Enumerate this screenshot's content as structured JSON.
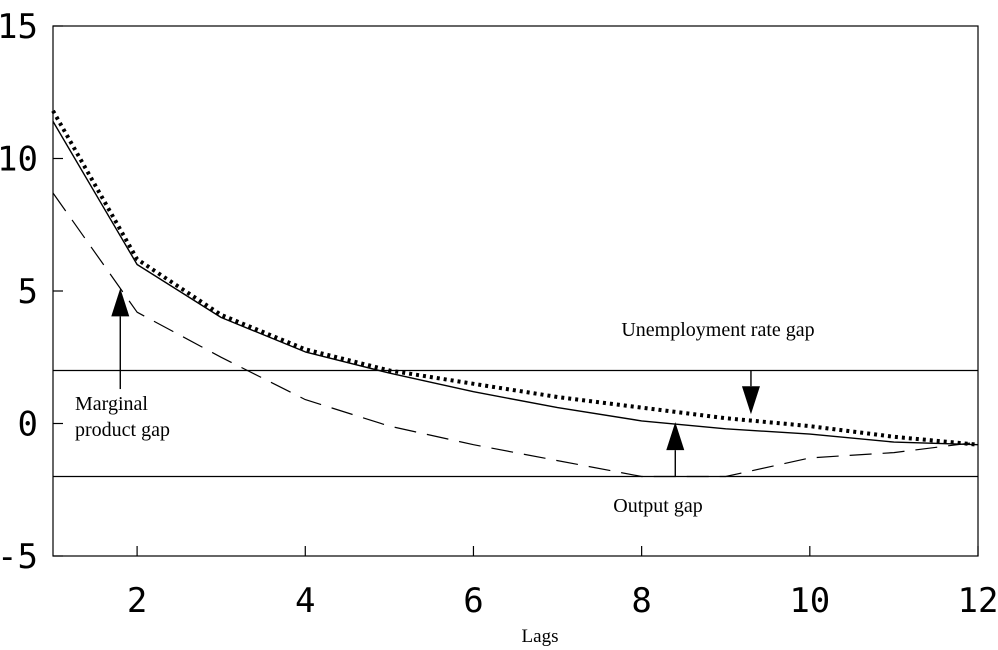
{
  "chart_data": {
    "type": "line",
    "xlabel": "Lags",
    "ylabel": "",
    "xlim": [
      1,
      12
    ],
    "ylim": [
      -5,
      15
    ],
    "x_ticks": [
      2,
      4,
      6,
      8,
      10,
      12
    ],
    "y_ticks": [
      -5,
      0,
      5,
      10,
      15
    ],
    "grid": false,
    "x": [
      1,
      2,
      3,
      4,
      5,
      6,
      7,
      8,
      9,
      10,
      11,
      12
    ],
    "series": [
      {
        "name": "Marginal product gap",
        "style": "solid",
        "color": "#000000",
        "values": [
          11.4,
          6.0,
          4.0,
          2.7,
          1.9,
          1.2,
          0.6,
          0.1,
          -0.2,
          -0.4,
          -0.7,
          -0.8
        ]
      },
      {
        "name": "Unemployment rate gap",
        "style": "dotted",
        "color": "#000000",
        "values": [
          11.8,
          6.2,
          4.1,
          2.8,
          2.0,
          1.5,
          1.0,
          0.6,
          0.2,
          -0.1,
          -0.5,
          -0.8
        ]
      },
      {
        "name": "Output gap",
        "style": "dashed",
        "color": "#000000",
        "values": [
          8.7,
          4.2,
          2.5,
          0.9,
          -0.1,
          -0.8,
          -1.4,
          -2.0,
          -2.0,
          -1.3,
          -1.1,
          -0.7
        ]
      }
    ],
    "reference_lines": [
      2.0,
      -2.0
    ],
    "annotations": [
      {
        "lines": [
          "Marginal",
          "product gap"
        ],
        "arrow_from": [
          1.8,
          1.3
        ],
        "arrow_to": [
          1.8,
          5.1
        ]
      },
      {
        "lines": [
          "Unemployment rate gap"
        ],
        "arrow_from": [
          9.3,
          2.0
        ],
        "arrow_to": [
          9.3,
          0.35
        ]
      },
      {
        "lines": [
          "Output gap"
        ],
        "arrow_from": [
          8.4,
          -2.0
        ],
        "arrow_to": [
          8.4,
          0.05
        ]
      }
    ]
  }
}
